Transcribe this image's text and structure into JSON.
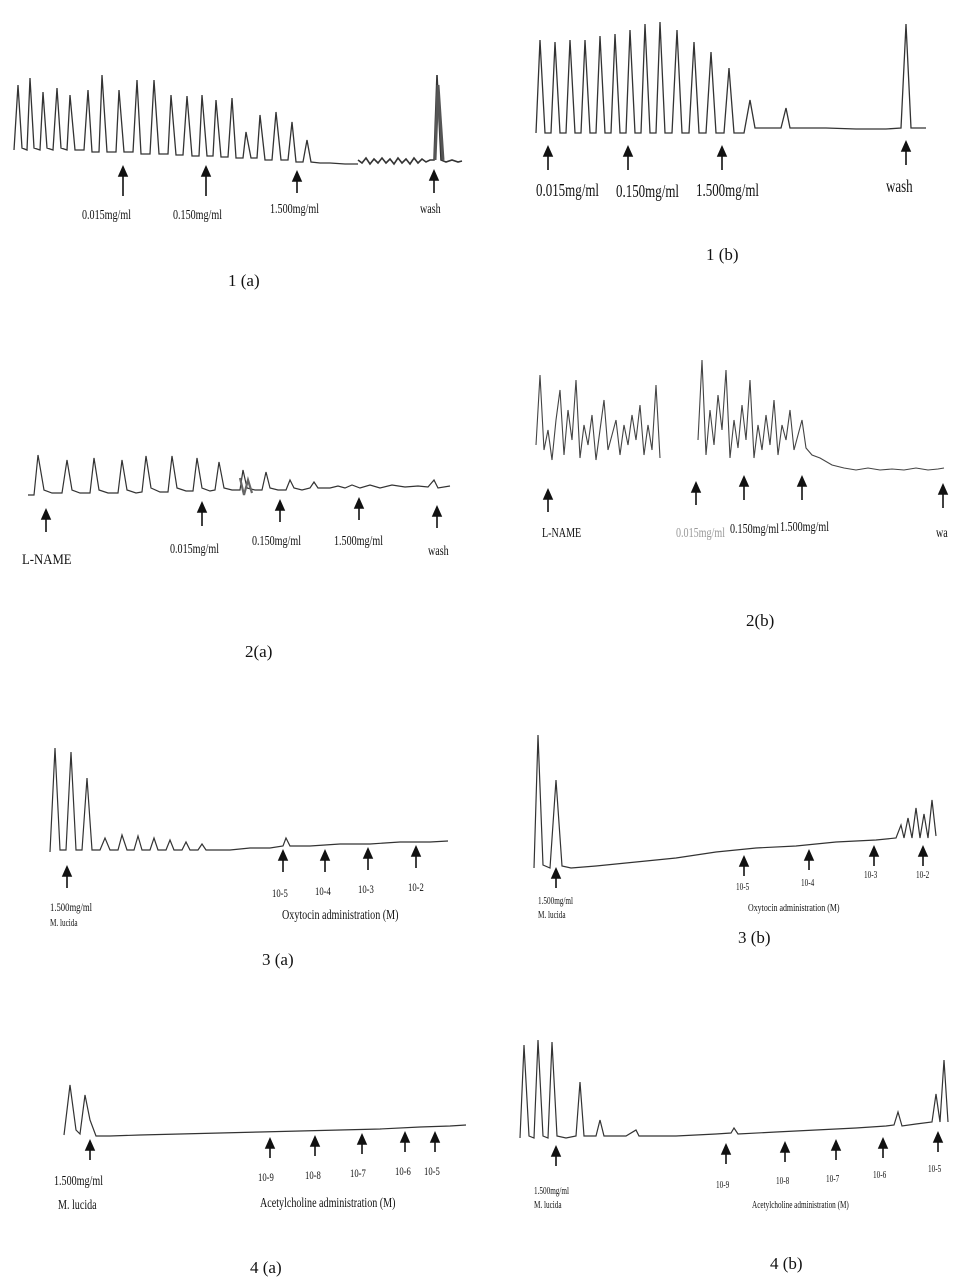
{
  "panels": [
    {
      "id": "1a",
      "caption": "1 (a)",
      "labels": [
        "0.015mg/ml",
        "0.150mg/ml",
        "1.500mg/ml",
        "wash"
      ]
    },
    {
      "id": "1b",
      "caption": "1 (b)",
      "labels": [
        "0.015mg/ml",
        "0.150mg/ml",
        "1.500mg/ml",
        "wash"
      ]
    },
    {
      "id": "2a",
      "caption": "2(a)",
      "labels": [
        "L-NAME",
        "0.015mg/ml",
        "0.150mg/ml",
        "1.500mg/ml",
        "wash"
      ]
    },
    {
      "id": "2b",
      "caption": "2(b)",
      "labels": [
        "L-NAME",
        "0.015mg/ml",
        "0.150mg/ml",
        "1.500mg/ml",
        "wa"
      ]
    },
    {
      "id": "3a",
      "caption": "3 (a)",
      "labels": [
        "1.500mg/ml",
        "M. lucida",
        "10-5",
        "10-4",
        "10-3",
        "10-2",
        "Oxytocin administration (M)"
      ]
    },
    {
      "id": "3b",
      "caption": "3 (b)",
      "labels": [
        "1.500mg/ml",
        "M. lucida",
        "10-5",
        "10-4",
        "10-3",
        "10-2",
        "Oxytocin administration (M)"
      ]
    },
    {
      "id": "4a",
      "caption": "4 (a)",
      "labels": [
        "1.500mg/ml",
        "M. lucida",
        "10-9",
        "10-8",
        "10-7",
        "10-6",
        "10-5",
        "Acetylcholine administration (M)"
      ]
    },
    {
      "id": "4b",
      "caption": "4 (b)",
      "labels": [
        "1.500mg/ml",
        "M. lucida",
        "10-9",
        "10-8",
        "10-7",
        "10-6",
        "10-5",
        "Acetylcholine administration (M)"
      ]
    }
  ]
}
